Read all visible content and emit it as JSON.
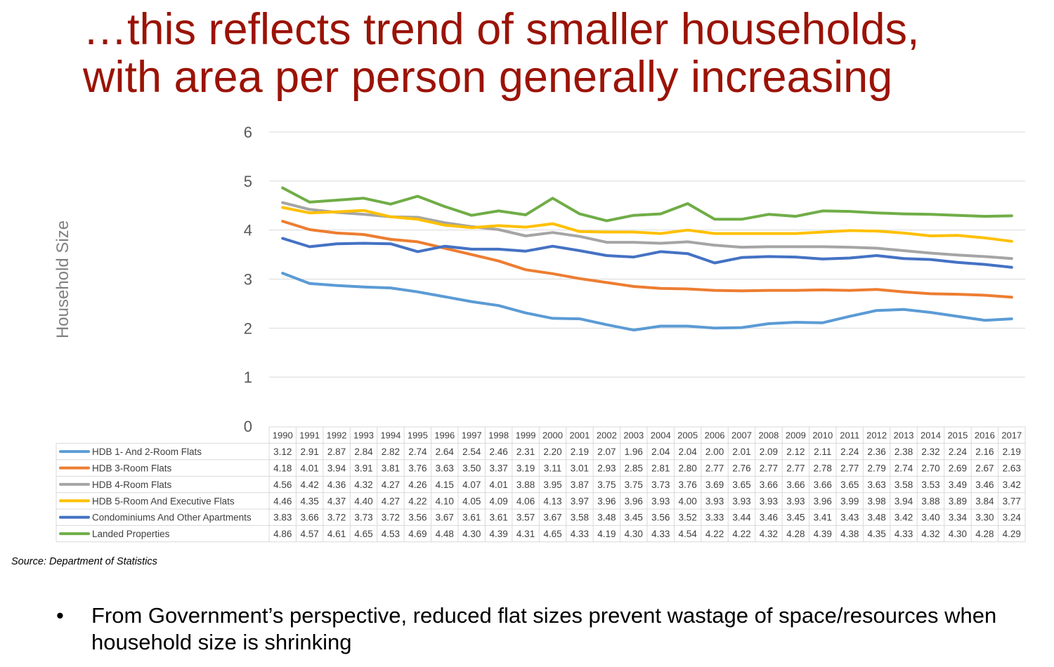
{
  "title": {
    "line1": "…this reflects trend of smaller households,",
    "line2": "with area per person generally increasing"
  },
  "chart_data": {
    "type": "line",
    "title": "",
    "xlabel": "",
    "ylabel": "Household Size",
    "ylim": [
      0,
      6
    ],
    "yticks": [
      0,
      1,
      2,
      3,
      4,
      5,
      6
    ],
    "grid": true,
    "legend": "data-table-left",
    "categories": [
      "1990",
      "1991",
      "1992",
      "1993",
      "1994",
      "1995",
      "1996",
      "1997",
      "1998",
      "1999",
      "2000",
      "2001",
      "2002",
      "2003",
      "2004",
      "2005",
      "2006",
      "2007",
      "2008",
      "2009",
      "2010",
      "2011",
      "2012",
      "2013",
      "2014",
      "2015",
      "2016",
      "2017"
    ],
    "series": [
      {
        "name": "HDB 1- And 2-Room Flats",
        "color": "#5b9bd5",
        "values": [
          3.12,
          2.91,
          2.87,
          2.84,
          2.82,
          2.74,
          2.64,
          2.54,
          2.46,
          2.31,
          2.2,
          2.19,
          2.07,
          1.96,
          2.04,
          2.04,
          2.0,
          2.01,
          2.09,
          2.12,
          2.11,
          2.24,
          2.36,
          2.38,
          2.32,
          2.24,
          2.16,
          2.19
        ]
      },
      {
        "name": "HDB 3-Room Flats",
        "color": "#ed7d31",
        "values": [
          4.18,
          4.01,
          3.94,
          3.91,
          3.81,
          3.76,
          3.63,
          3.5,
          3.37,
          3.19,
          3.11,
          3.01,
          2.93,
          2.85,
          2.81,
          2.8,
          2.77,
          2.76,
          2.77,
          2.77,
          2.78,
          2.77,
          2.79,
          2.74,
          2.7,
          2.69,
          2.67,
          2.63
        ]
      },
      {
        "name": "HDB 4-Room Flats",
        "color": "#a5a5a5",
        "values": [
          4.56,
          4.42,
          4.36,
          4.32,
          4.27,
          4.26,
          4.15,
          4.07,
          4.01,
          3.88,
          3.95,
          3.87,
          3.75,
          3.75,
          3.73,
          3.76,
          3.69,
          3.65,
          3.66,
          3.66,
          3.66,
          3.65,
          3.63,
          3.58,
          3.53,
          3.49,
          3.46,
          3.42
        ]
      },
      {
        "name": "HDB 5-Room And Executive Flats",
        "color": "#ffc000",
        "values": [
          4.46,
          4.35,
          4.37,
          4.4,
          4.27,
          4.22,
          4.1,
          4.05,
          4.09,
          4.06,
          4.13,
          3.97,
          3.96,
          3.96,
          3.93,
          4.0,
          3.93,
          3.93,
          3.93,
          3.93,
          3.96,
          3.99,
          3.98,
          3.94,
          3.88,
          3.89,
          3.84,
          3.77
        ]
      },
      {
        "name": "Condominiums And Other Apartments",
        "color": "#4472c4",
        "values": [
          3.83,
          3.66,
          3.72,
          3.73,
          3.72,
          3.56,
          3.67,
          3.61,
          3.61,
          3.57,
          3.67,
          3.58,
          3.48,
          3.45,
          3.56,
          3.52,
          3.33,
          3.44,
          3.46,
          3.45,
          3.41,
          3.43,
          3.48,
          3.42,
          3.4,
          3.34,
          3.3,
          3.24
        ]
      },
      {
        "name": "Landed Properties",
        "color": "#70ad47",
        "values": [
          4.86,
          4.57,
          4.61,
          4.65,
          4.53,
          4.69,
          4.48,
          4.3,
          4.39,
          4.31,
          4.65,
          4.33,
          4.19,
          4.3,
          4.33,
          4.54,
          4.22,
          4.22,
          4.32,
          4.28,
          4.39,
          4.38,
          4.35,
          4.33,
          4.32,
          4.3,
          4.28,
          4.29
        ]
      }
    ]
  },
  "source": "Source: Department of Statistics",
  "bullet": {
    "symbol": "•",
    "text": "From Government’s perspective, reduced flat sizes prevent wastage of space/resources when household size is shrinking"
  }
}
